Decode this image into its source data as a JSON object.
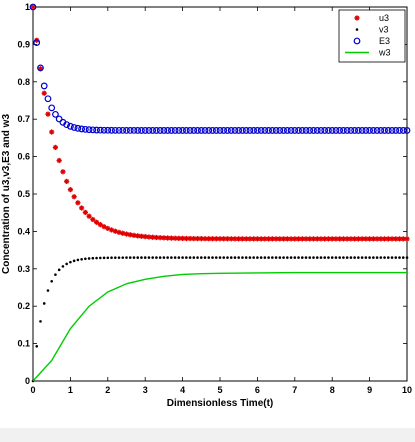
{
  "chart_data": {
    "type": "scatter",
    "xlabel": "Dimensionless Time(t)",
    "ylabel": "Concentration of u3,v3,E3 and w3",
    "xlim": [
      0,
      10
    ],
    "ylim": [
      0,
      1
    ],
    "x_ticks": [
      "0",
      "1",
      "2",
      "3",
      "4",
      "5",
      "6",
      "7",
      "8",
      "9",
      "10"
    ],
    "y_ticks": [
      "0",
      "0.1",
      "0.2",
      "0.3",
      "0.4",
      "0.5",
      "0.6",
      "0.7",
      "0.8",
      "0.9",
      "1"
    ],
    "grid": false,
    "legend_position": "top-right",
    "series": [
      {
        "name": "u3",
        "marker": "star",
        "color": "#e00000",
        "model": {
          "start": 1.0,
          "end": 0.38,
          "rate": 1.55
        },
        "x": [
          0,
          0.1,
          0.2,
          0.3,
          0.4,
          0.5,
          0.75,
          1,
          1.5,
          2,
          3,
          4,
          5,
          6,
          8,
          10
        ],
        "values": [
          1.0,
          0.92,
          0.84,
          0.78,
          0.73,
          0.68,
          0.57,
          0.51,
          0.436,
          0.408,
          0.386,
          0.382,
          0.38,
          0.38,
          0.38,
          0.38
        ]
      },
      {
        "name": "v3",
        "marker": "dot",
        "color": "#000000",
        "model": {
          "start": 0.0,
          "end": 0.33,
          "rate": 3.3
        },
        "x": [
          0,
          0.1,
          0.2,
          0.3,
          0.5,
          0.75,
          1,
          1.5,
          2,
          3,
          5,
          10
        ],
        "values": [
          0.0,
          0.09,
          0.16,
          0.21,
          0.27,
          0.31,
          0.32,
          0.328,
          0.33,
          0.33,
          0.33,
          0.33
        ]
      },
      {
        "name": "E3",
        "marker": "circle",
        "color": "#0000d0",
        "model": {
          "start": 1.0,
          "end": 0.67,
          "rate": 3.4
        },
        "x": [
          0,
          0.1,
          0.2,
          0.3,
          0.5,
          0.75,
          1,
          1.5,
          2,
          3,
          5,
          10
        ],
        "values": [
          1.0,
          0.92,
          0.85,
          0.8,
          0.73,
          0.69,
          0.68,
          0.672,
          0.67,
          0.67,
          0.67,
          0.67
        ]
      },
      {
        "name": "w3",
        "marker": "line",
        "color": "#00cc00",
        "x": [
          0,
          0.5,
          1,
          1.5,
          2,
          2.5,
          3,
          3.5,
          4,
          4.5,
          5,
          6,
          7,
          8,
          9,
          10
        ],
        "values": [
          0.0,
          0.055,
          0.14,
          0.2,
          0.238,
          0.26,
          0.272,
          0.28,
          0.285,
          0.287,
          0.288,
          0.289,
          0.29,
          0.29,
          0.29,
          0.29
        ]
      }
    ]
  }
}
